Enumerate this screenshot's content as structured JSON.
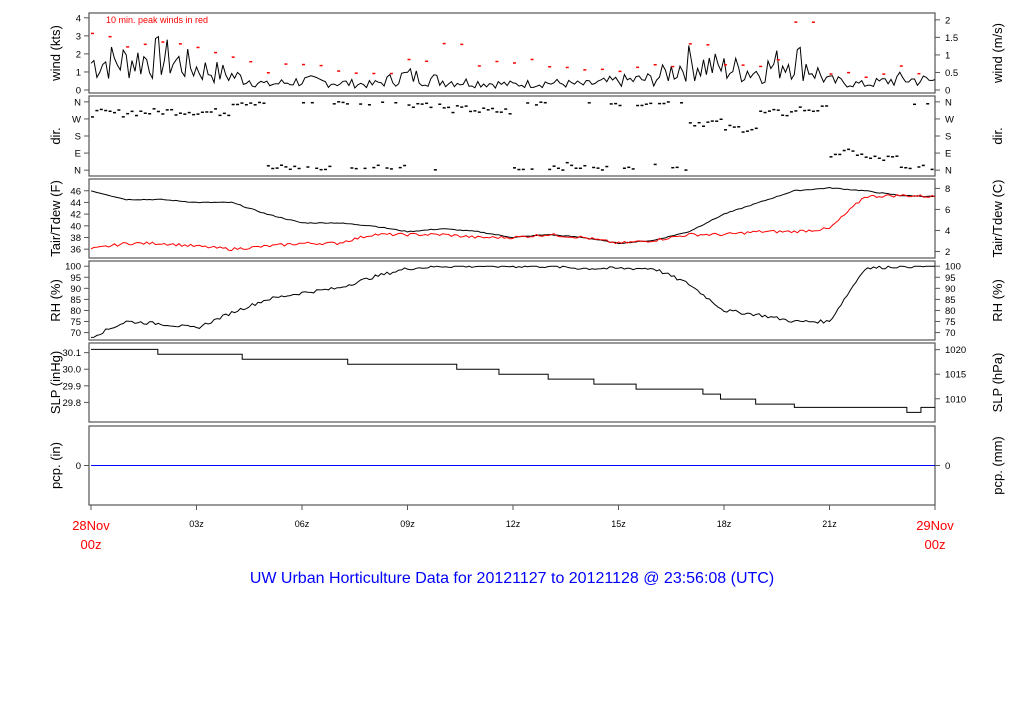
{
  "chart_data": {
    "type": "line",
    "title": "UW Urban Horticulture Data for 20121127  to  20121128 @ 23:56:08  (UTC)",
    "x_hours": [
      0,
      1,
      2,
      3,
      4,
      5,
      6,
      7,
      8,
      9,
      10,
      11,
      12,
      13,
      14,
      15,
      16,
      17,
      18,
      19,
      20,
      21,
      22,
      23,
      24
    ],
    "x_ticks": [
      {
        "h": 0,
        "label": "28Nov",
        "label2": "00z",
        "red": true
      },
      {
        "h": 3,
        "label": "03z"
      },
      {
        "h": 6,
        "label": "06z"
      },
      {
        "h": 9,
        "label": "09z"
      },
      {
        "h": 12,
        "label": "12z"
      },
      {
        "h": 15,
        "label": "15z"
      },
      {
        "h": 18,
        "label": "18z"
      },
      {
        "h": 21,
        "label": "21z"
      },
      {
        "h": 24,
        "label": "29Nov",
        "label2": "00z",
        "red": true
      }
    ],
    "panels": [
      {
        "id": "wind",
        "ylabel": "wind (kts)",
        "ylabel_right": "wind (m/s)",
        "ylim": [
          0,
          4.1
        ],
        "ticks": [
          0,
          1,
          2,
          3,
          4
        ],
        "right_ticks": [
          {
            "v": 0,
            "label": "0"
          },
          {
            "v": 0.5,
            "label": "0.5"
          },
          {
            "v": 1,
            "label": "1"
          },
          {
            "v": 1.5,
            "label": "1.5"
          },
          {
            "v": 2,
            "label": "2"
          }
        ],
        "right_factor": 1.944,
        "annotation": "10 min. peak winds in red",
        "series": [
          {
            "name": "wind",
            "color": "#000000",
            "values": [
              1.5,
              1.6,
              1.8,
              1.2,
              0.8,
              0.3,
              0.5,
              0.4,
              0.3,
              0.8,
              0.5,
              0.4,
              0.3,
              0.4,
              0.3,
              0.5,
              0.6,
              1.5,
              1.2,
              1.0,
              1.8,
              0.5,
              0.3,
              0.6,
              0.5
            ]
          },
          {
            "name": "peak",
            "color": "#ff0000",
            "points": true,
            "values": [
              3.2,
              2.6,
              2.4,
              2.1,
              1.6,
              1.2,
              1.5,
              1.2,
              1.0,
              1.4,
              2.5,
              1.6,
              1.7,
              1.4,
              1.1,
              1.2,
              1.3,
              2.8,
              1.4,
              1.6,
              4.0,
              1.0,
              0.6,
              1.1,
              0.9
            ]
          }
        ]
      },
      {
        "id": "dir",
        "ylabel": "dir.",
        "ylabel_right": "dir.",
        "ylim": [
          -15,
          375
        ],
        "tick_labels": [
          {
            "v": 0,
            "label": "N"
          },
          {
            "v": 90,
            "label": "E"
          },
          {
            "v": 180,
            "label": "S"
          },
          {
            "v": 270,
            "label": "W"
          },
          {
            "v": 360,
            "label": "N"
          }
        ],
        "series": [
          {
            "name": "direction",
            "color": "#000000",
            "points": true,
            "values": [
              300,
              305,
              310,
              305,
              0,
              10,
              5,
              0,
              15,
              350,
              320,
              310,
              0,
              20,
              5,
              0,
              10,
              250,
              220,
              300,
              320,
              90,
              60,
              5,
              330
            ]
          }
        ]
      },
      {
        "id": "temp",
        "ylabel": "Tair/Tdew (F)",
        "ylabel_right": "Tair/Tdew (C)",
        "ylim": [
          35,
          47.5
        ],
        "ticks": [
          36,
          38,
          40,
          42,
          44,
          46
        ],
        "right_ticks": [
          {
            "v": 35.6,
            "label": "2"
          },
          {
            "v": 39.2,
            "label": "4"
          },
          {
            "v": 42.8,
            "label": "6"
          },
          {
            "v": 46.4,
            "label": "8"
          }
        ],
        "series": [
          {
            "name": "Tair",
            "color": "#000000",
            "values": [
              46,
              44.5,
              44.5,
              44,
              44,
              42,
              40.5,
              40.5,
              40,
              39,
              39.5,
              39,
              38,
              38.5,
              38,
              37,
              37.5,
              39,
              42,
              44,
              46,
              46.5,
              46,
              45.2,
              45
            ]
          },
          {
            "name": "Tdew",
            "color": "#ff0000",
            "values": [
              36,
              37,
              37,
              36.5,
              36,
              36.5,
              37,
              37,
              38.5,
              38.5,
              38.5,
              38,
              38,
              38.5,
              38,
              37,
              37.5,
              38.5,
              38.5,
              39,
              39,
              39.5,
              45,
              45.2,
              45
            ]
          }
        ]
      },
      {
        "id": "rh",
        "ylabel": "RH (%)",
        "ylabel_right": "RH (%)",
        "ylim": [
          68,
          101
        ],
        "ticks": [
          70,
          75,
          80,
          85,
          90,
          95,
          100
        ],
        "right_ticks": [
          {
            "v": 70,
            "label": "70"
          },
          {
            "v": 75,
            "label": "75"
          },
          {
            "v": 80,
            "label": "80"
          },
          {
            "v": 85,
            "label": "85"
          },
          {
            "v": 90,
            "label": "90"
          },
          {
            "v": 95,
            "label": "95"
          },
          {
            "v": 100,
            "label": "100"
          }
        ],
        "series": [
          {
            "name": "RH",
            "color": "#000000",
            "values": [
              68,
              75,
              74,
              72,
              79,
              85,
              88,
              90,
              95,
              99,
              100,
              100,
              100,
              100,
              99,
              99,
              99,
              92,
              80,
              78,
              75,
              75,
              99,
              100,
              100
            ]
          }
        ]
      },
      {
        "id": "slp",
        "ylabel": "SLP (inHg)",
        "ylabel_right": "SLP (hPa)",
        "ylim": [
          29.7,
          30.14
        ],
        "ticks": [
          29.8,
          29.9,
          30.0,
          30.1
        ],
        "tick_fmt": 1,
        "right_ticks": [
          {
            "v": 29.822,
            "label": "1010"
          },
          {
            "v": 29.97,
            "label": "1015"
          },
          {
            "v": 30.118,
            "label": "1020"
          }
        ],
        "steps": [
          [
            0,
            30.12
          ],
          [
            1.9,
            30.09
          ],
          [
            4.3,
            30.06
          ],
          [
            7.3,
            30.03
          ],
          [
            10.4,
            30.0
          ],
          [
            11.6,
            29.97
          ],
          [
            13,
            29.94
          ],
          [
            14.3,
            29.91
          ],
          [
            15.5,
            29.88
          ],
          [
            17.4,
            29.85
          ],
          [
            17.9,
            29.82
          ],
          [
            18.9,
            29.79
          ],
          [
            20,
            29.77
          ],
          [
            23.2,
            29.74
          ],
          [
            23.6,
            29.77
          ],
          [
            24,
            29.77
          ]
        ]
      },
      {
        "id": "pcp",
        "ylabel": "pcp. (in)",
        "ylabel_right": "pcp. (mm)",
        "ylim": [
          -1,
          1
        ],
        "ticks": [
          0
        ],
        "right_ticks": [
          {
            "v": 0,
            "label": "0"
          }
        ],
        "series": [
          {
            "name": "precip",
            "color": "#0000ff",
            "values": [
              0,
              0,
              0,
              0,
              0,
              0,
              0,
              0,
              0,
              0,
              0,
              0,
              0,
              0,
              0,
              0,
              0,
              0,
              0,
              0,
              0,
              0,
              0,
              0,
              0
            ]
          }
        ]
      }
    ]
  }
}
